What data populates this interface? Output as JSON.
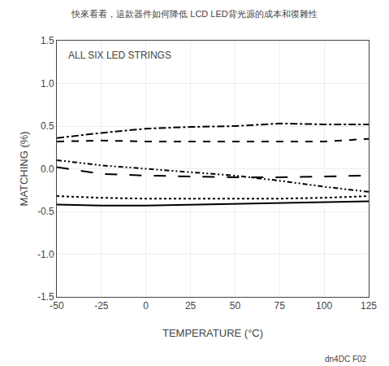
{
  "chart_data": {
    "type": "line",
    "title": "快來看看，這款器件如何降低 LCD LED背光源的成本和復雜性",
    "annotation": "ALL SIX LED STRINGS",
    "footnote": "dn4DC F02",
    "xlabel": "TEMPERATURE (°C)",
    "ylabel": "MATCHING (%)",
    "x": [
      -50,
      -25,
      0,
      25,
      50,
      75,
      100,
      125
    ],
    "series": [
      {
        "color": "#000000",
        "line_style": "dashdot",
        "values": [
          0.36,
          0.42,
          0.47,
          0.49,
          0.5,
          0.53,
          0.52,
          0.52
        ]
      },
      {
        "color": "#000000",
        "line_style": "dash",
        "values": [
          0.32,
          0.33,
          0.32,
          0.32,
          0.32,
          0.32,
          0.32,
          0.35
        ]
      },
      {
        "color": "#000000",
        "line_style": "dashdotdot",
        "values": [
          0.1,
          0.04,
          0.0,
          -0.04,
          -0.08,
          -0.14,
          -0.21,
          -0.27
        ]
      },
      {
        "color": "#000000",
        "line_style": "longdash",
        "values": [
          0.02,
          -0.06,
          -0.08,
          -0.09,
          -0.1,
          -0.1,
          -0.09,
          -0.08
        ]
      },
      {
        "color": "#000000",
        "line_style": "dot",
        "values": [
          -0.32,
          -0.34,
          -0.35,
          -0.35,
          -0.35,
          -0.35,
          -0.34,
          -0.32
        ]
      },
      {
        "color": "#000000",
        "line_style": "solid",
        "values": [
          -0.42,
          -0.43,
          -0.43,
          -0.42,
          -0.41,
          -0.4,
          -0.39,
          -0.38
        ]
      }
    ],
    "xlim": [
      -50,
      125
    ],
    "ylim": [
      -1.5,
      1.5
    ],
    "xticks": [
      -50,
      -25,
      0,
      25,
      50,
      75,
      100,
      125
    ],
    "yticks": [
      -1.5,
      {
        "value": -1.0,
        "label": "-1.0"
      },
      -0.5,
      {
        "value": 0.0,
        "label": "0.0"
      },
      0.5,
      {
        "value": 1.0,
        "label": "1.0"
      },
      1.5
    ],
    "grid": true
  }
}
